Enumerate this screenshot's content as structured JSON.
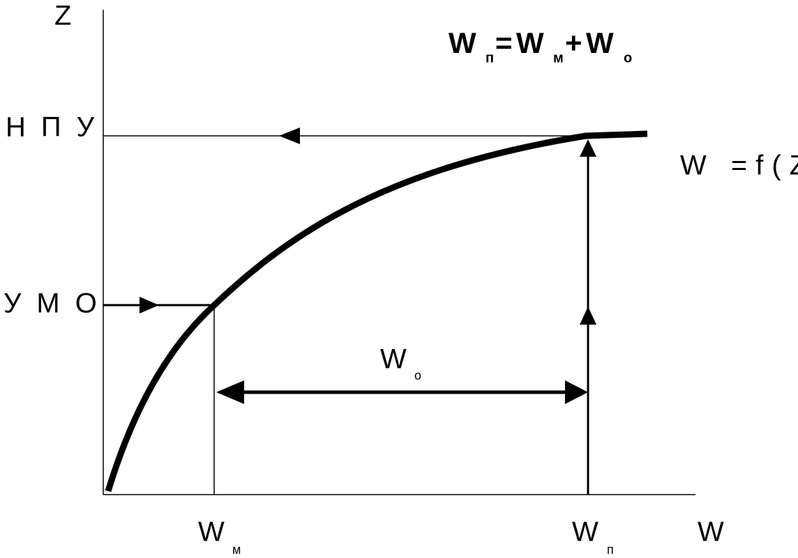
{
  "axes": {
    "y_label": "Z",
    "x_label": "W"
  },
  "levels": {
    "npu": "НПУ",
    "umo": "УМО"
  },
  "formula": {
    "terms": [
      {
        "main": "W",
        "sub": "п"
      },
      {
        "main": "W",
        "sub": "м"
      },
      {
        "main": "W",
        "sub": "о"
      }
    ],
    "operators": [
      "=",
      "+"
    ]
  },
  "curve_label": "W =f(Z)",
  "wo_label": {
    "main": "W",
    "sub": "о"
  },
  "x_marks": [
    {
      "main": "W",
      "sub": "м"
    },
    {
      "main": "W",
      "sub": "п"
    }
  ]
}
